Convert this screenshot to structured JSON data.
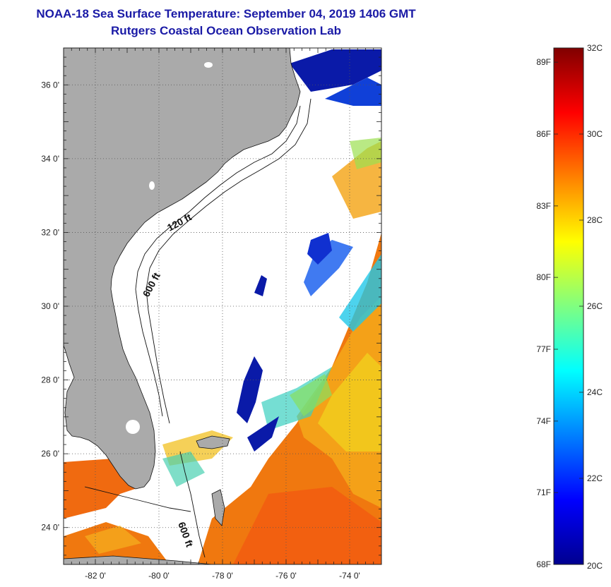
{
  "title": {
    "line1": "NOAA-18 Sea Surface Temperature:  September 04, 2019 1406 GMT",
    "line2": "Rutgers Coastal Ocean Observation Lab"
  },
  "map": {
    "lon_range": [
      -83,
      -73
    ],
    "lat_range": [
      23,
      37
    ],
    "lon_ticks": [
      {
        "value": -82,
        "label": "-82 0'"
      },
      {
        "value": -80,
        "label": "-80 0'"
      },
      {
        "value": -78,
        "label": "-78 0'"
      },
      {
        "value": -76,
        "label": "-76 0'"
      },
      {
        "value": -74,
        "label": "-74 0'"
      }
    ],
    "lat_ticks": [
      {
        "value": 36,
        "label": "36 0'"
      },
      {
        "value": 34,
        "label": "34 0'"
      },
      {
        "value": 32,
        "label": "32 0'"
      },
      {
        "value": 30,
        "label": "30 0'"
      },
      {
        "value": 28,
        "label": "28 0'"
      },
      {
        "value": 26,
        "label": "26 0'"
      },
      {
        "value": 24,
        "label": "24 0'"
      }
    ],
    "contour_labels": [
      "120 ft",
      "600 ft",
      "600 ft"
    ],
    "land_color": "#aaaaaa",
    "grid": "dotted"
  },
  "colorbar": {
    "range_c": [
      20,
      32
    ],
    "f_labels": [
      {
        "label": "89F",
        "c": 31.67
      },
      {
        "label": "86F",
        "c": 30.0
      },
      {
        "label": "83F",
        "c": 28.33
      },
      {
        "label": "80F",
        "c": 26.67
      },
      {
        "label": "77F",
        "c": 25.0
      },
      {
        "label": "74F",
        "c": 23.33
      },
      {
        "label": "71F",
        "c": 21.67
      },
      {
        "label": "68F",
        "c": 20.0
      }
    ],
    "c_labels": [
      {
        "label": "32C",
        "c": 32
      },
      {
        "label": "30C",
        "c": 30
      },
      {
        "label": "28C",
        "c": 28
      },
      {
        "label": "26C",
        "c": 26
      },
      {
        "label": "24C",
        "c": 24
      },
      {
        "label": "22C",
        "c": 22
      },
      {
        "label": "20C",
        "c": 20
      }
    ],
    "colors": [
      "#00008f",
      "#0000ff",
      "#0080ff",
      "#00ffff",
      "#80ff80",
      "#ffff00",
      "#ff8000",
      "#ff0000",
      "#800000"
    ]
  }
}
